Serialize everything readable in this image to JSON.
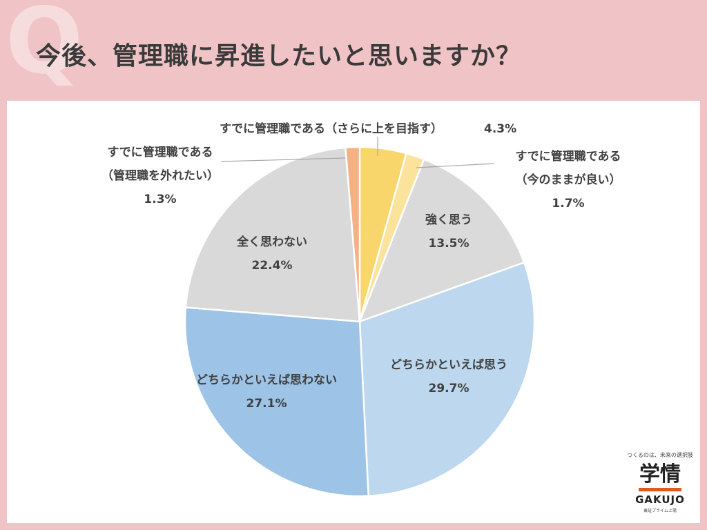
{
  "title": "今後、管理職に昇進したいと思いますか？",
  "q_mark": "Q",
  "logo": {
    "tagline": "つくるのは、未来の選択肢",
    "main": "学情",
    "en": "GAKUJO",
    "sub": "東証プライム上場"
  },
  "chart_data": {
    "type": "pie",
    "title": "今後、管理職に昇進したいと思いますか？",
    "start_angle_deg": 0,
    "direction": "clockwise",
    "slices": [
      {
        "label": "すでに管理職である（さらに上を目指す）",
        "value": 4.3,
        "value_label": "4.3%",
        "color": "#f9d66b"
      },
      {
        "label": "すでに管理職である（今のままが良い）",
        "value": 1.7,
        "value_label": "1.7%",
        "color": "#fbe39b"
      },
      {
        "label": "強く思う",
        "value": 13.5,
        "value_label": "13.5%",
        "color": "#dadada"
      },
      {
        "label": "どちらかといえば思う",
        "value": 29.7,
        "value_label": "29.7%",
        "color": "#bdd7ee"
      },
      {
        "label": "どちらかといえば思わない",
        "value": 27.1,
        "value_label": "27.1%",
        "color": "#9dc3e6"
      },
      {
        "label": "全く思わない",
        "value": 22.4,
        "value_label": "22.4%",
        "color": "#d9d9d9"
      },
      {
        "label": "すでに管理職である（管理職を外れたい）",
        "value": 1.3,
        "value_label": "1.3%",
        "color": "#f4b183"
      }
    ],
    "legend": "none"
  }
}
